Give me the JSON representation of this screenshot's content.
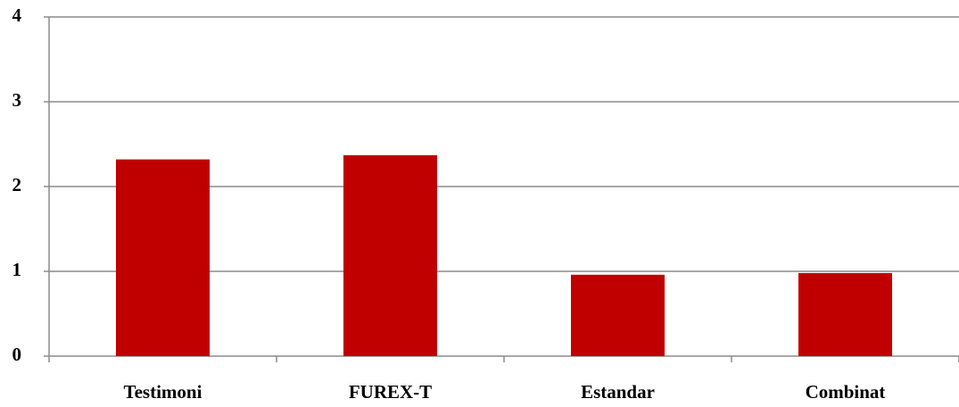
{
  "chart_data": {
    "type": "bar",
    "categories": [
      "Testimoni",
      "FUREX-T",
      "Estandar",
      "Combinat"
    ],
    "values": [
      2.32,
      2.37,
      0.96,
      0.98
    ],
    "color": "#c00000",
    "ylim": [
      0,
      4
    ],
    "yticks": [
      0,
      1,
      2,
      3,
      4
    ],
    "grid": true
  }
}
